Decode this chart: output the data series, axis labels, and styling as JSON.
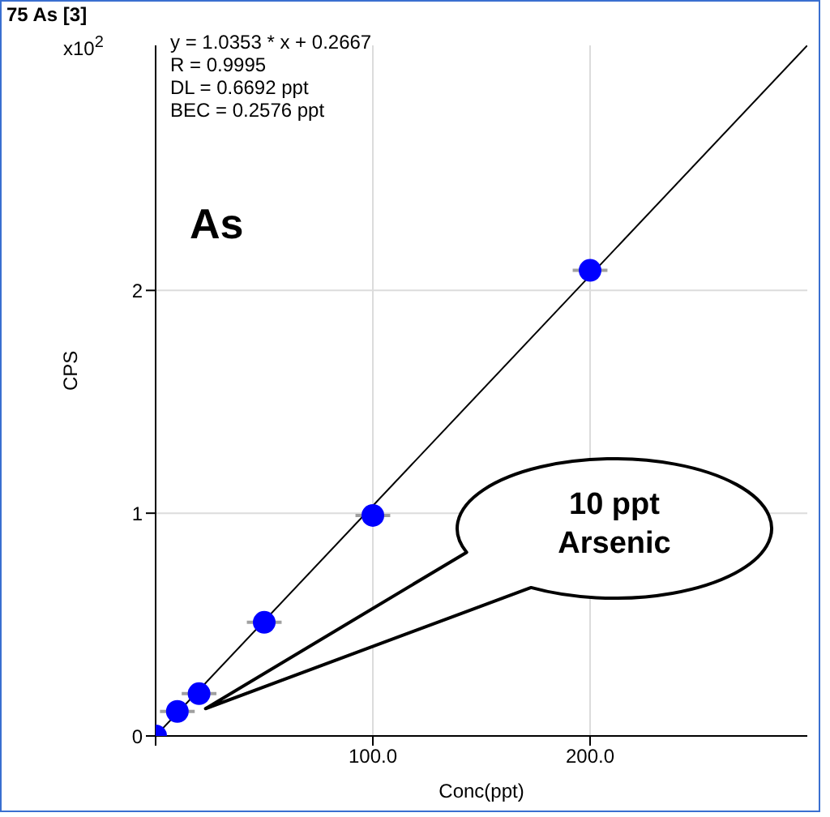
{
  "chart_data": {
    "type": "scatter",
    "title": "75 As [3]",
    "xlabel": "Conc(ppt)",
    "ylabel": "CPS",
    "annotations": [
      "x10$^{2}$",
      "y = 1.0353 * x  + 0.2667",
      "R =  0.9995",
      "DL = 0.6692 ppt",
      "BEC = 0.2576 ppt",
      "As",
      {
        "text": "10 ppt Arsenic",
        "x": 20,
        "y": 0.13
      }
    ],
    "series": [
      {
        "type": "scatter",
        "color": "#0000ff",
        "x": [
          0,
          10,
          20,
          50,
          100,
          200
        ],
        "values": [
          0,
          0.11,
          0.19,
          0.51,
          0.99,
          2.09
        ],
        "xerrors": [
          null,
          8,
          8,
          8,
          8,
          8
        ],
        "marker": "circle"
      },
      {
        "type": "line",
        "color": "#000000",
        "x": [
          0,
          300
        ],
        "values": [
          0,
          3.1
        ],
        "marker": "none"
      }
    ],
    "xlim": [
      0,
      300
    ],
    "ylim": [
      0,
      3.1
    ],
    "xticks": [
      {
        "value": 0,
        "label": null
      },
      {
        "value": 100,
        "label": "100.0"
      },
      {
        "value": 200,
        "label": "200.0"
      }
    ],
    "yticks": [
      0,
      1,
      2
    ],
    "grid": true,
    "legend": false
  }
}
